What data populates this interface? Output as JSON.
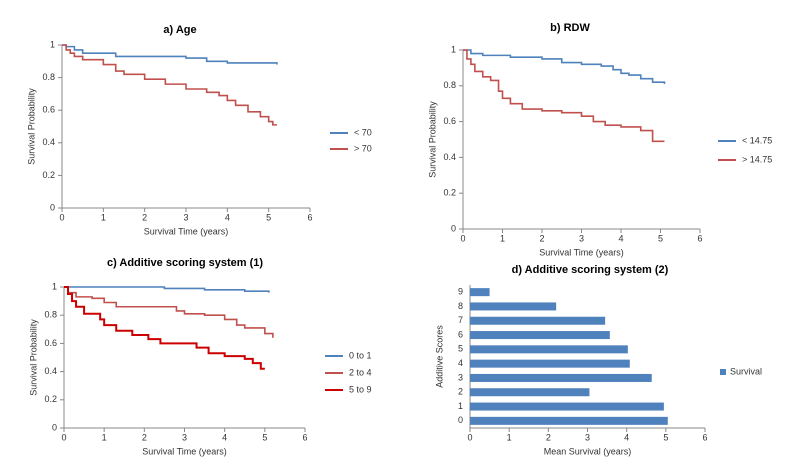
{
  "chart_data": [
    {
      "type": "line",
      "step": true,
      "title": "a) Age",
      "x_label": "Survival Time (years)",
      "y_label": "Survival Probability",
      "xlim": [
        0,
        6
      ],
      "xticks": [
        0,
        1,
        2,
        3,
        4,
        5,
        6
      ],
      "ylim": [
        0,
        1
      ],
      "yticks": [
        0,
        0.2,
        0.4,
        0.6,
        0.8,
        1
      ],
      "legend": "right",
      "series": [
        {
          "name": "< 70",
          "color": "#4f81bd",
          "x": [
            0,
            0.1,
            0.3,
            0.5,
            1.3,
            3,
            3.5,
            4,
            5.2
          ],
          "values": [
            1,
            0.99,
            0.97,
            0.95,
            0.93,
            0.92,
            0.9,
            0.89,
            0.88
          ]
        },
        {
          "name": "> 70",
          "color": "#c0504d",
          "x": [
            0,
            0.1,
            0.2,
            0.3,
            0.5,
            1,
            1.3,
            1.5,
            2,
            2.5,
            3,
            3.5,
            3.8,
            4,
            4.2,
            4.5,
            4.8,
            5,
            5.1,
            5.2
          ],
          "values": [
            1,
            0.97,
            0.95,
            0.93,
            0.91,
            0.88,
            0.84,
            0.82,
            0.79,
            0.76,
            0.73,
            0.71,
            0.69,
            0.66,
            0.63,
            0.59,
            0.56,
            0.53,
            0.51,
            0.51
          ]
        }
      ]
    },
    {
      "type": "line",
      "step": true,
      "title": "b) RDW",
      "x_label": "Survival Time (years)",
      "y_label": "Survival Probability",
      "xlim": [
        0,
        6
      ],
      "xticks": [
        0,
        1,
        2,
        3,
        4,
        5,
        6
      ],
      "ylim": [
        0,
        1
      ],
      "yticks": [
        0,
        0.2,
        0.4,
        0.6,
        0.8,
        1
      ],
      "legend": "right",
      "series": [
        {
          "name": "< 14.75",
          "color": "#4f81bd",
          "x": [
            0,
            0.2,
            0.5,
            1.2,
            2,
            2.5,
            3,
            3.5,
            3.8,
            4,
            4.2,
            4.5,
            4.8,
            5.1
          ],
          "values": [
            1,
            0.98,
            0.97,
            0.96,
            0.95,
            0.93,
            0.92,
            0.91,
            0.89,
            0.87,
            0.86,
            0.84,
            0.82,
            0.81
          ]
        },
        {
          "name": "> 14.75",
          "color": "#c0504d",
          "x": [
            0,
            0.1,
            0.2,
            0.3,
            0.5,
            0.7,
            0.9,
            1,
            1.2,
            1.5,
            2,
            2.5,
            3,
            3.3,
            3.6,
            4,
            4.5,
            4.8,
            5.1
          ],
          "values": [
            1,
            0.95,
            0.92,
            0.88,
            0.85,
            0.83,
            0.77,
            0.73,
            0.7,
            0.67,
            0.66,
            0.65,
            0.63,
            0.6,
            0.58,
            0.57,
            0.55,
            0.49,
            0.49
          ]
        }
      ]
    },
    {
      "type": "line",
      "step": true,
      "title": "c) Additive scoring system (1)",
      "x_label": "Survival Time (years)",
      "y_label": "Survival Probability",
      "xlim": [
        0,
        6
      ],
      "xticks": [
        0,
        1,
        2,
        3,
        4,
        5,
        6
      ],
      "ylim": [
        0,
        1
      ],
      "yticks": [
        0,
        0.2,
        0.4,
        0.6,
        0.8,
        1
      ],
      "legend": "right",
      "series": [
        {
          "name": "0 to 1",
          "color": "#4f81bd",
          "x": [
            0,
            2.5,
            3.5,
            4.5,
            5.1
          ],
          "values": [
            1,
            0.99,
            0.98,
            0.97,
            0.96
          ]
        },
        {
          "name": "2 to 4",
          "color": "#c0504d",
          "x": [
            0,
            0.1,
            0.3,
            0.7,
            1,
            1.3,
            2,
            2.8,
            3,
            3.5,
            4,
            4.3,
            4.5,
            5,
            5.2
          ],
          "values": [
            1,
            0.96,
            0.93,
            0.92,
            0.89,
            0.86,
            0.86,
            0.83,
            0.81,
            0.8,
            0.77,
            0.73,
            0.71,
            0.67,
            0.64
          ]
        },
        {
          "name": "5 to 9",
          "color": "#cc0000",
          "x": [
            0,
            0.1,
            0.2,
            0.3,
            0.5,
            0.9,
            1,
            1.3,
            1.7,
            2.1,
            2.4,
            3,
            3.3,
            3.6,
            4,
            4.5,
            4.7,
            4.9,
            5
          ],
          "values": [
            1,
            0.95,
            0.9,
            0.86,
            0.81,
            0.77,
            0.73,
            0.69,
            0.66,
            0.63,
            0.6,
            0.6,
            0.57,
            0.53,
            0.51,
            0.49,
            0.46,
            0.42,
            0.42
          ]
        }
      ]
    },
    {
      "type": "barh",
      "title": "d) Additive scoring system (2)",
      "x_label": "Mean Survival (years)",
      "y_label": "Additive Scores",
      "xlim": [
        0,
        6
      ],
      "xticks": [
        0,
        1,
        2,
        3,
        4,
        5,
        6
      ],
      "legend": "right",
      "categories": [
        "0",
        "1",
        "2",
        "3",
        "4",
        "5",
        "6",
        "7",
        "8",
        "9"
      ],
      "series": [
        {
          "name": "Survival",
          "color": "#4f81bd",
          "values": [
            5.05,
            4.95,
            3.05,
            4.64,
            4.08,
            4.03,
            3.57,
            3.45,
            2.2,
            0.5
          ]
        }
      ]
    }
  ]
}
